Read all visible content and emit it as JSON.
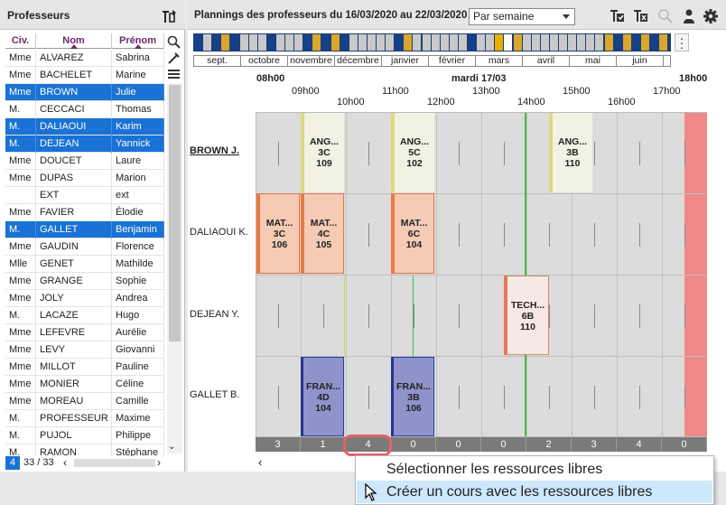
{
  "left_panel": {
    "title": "Professeurs",
    "columns": [
      "Civ.",
      "Nom",
      "Prénom"
    ],
    "rows": [
      {
        "civ": "Mme",
        "nom": "ALVAREZ",
        "prenom": "Sabrina",
        "selected": false
      },
      {
        "civ": "Mme",
        "nom": "BACHELET",
        "prenom": "Marine",
        "selected": false
      },
      {
        "civ": "Mme",
        "nom": "BROWN",
        "prenom": "Julie",
        "selected": true
      },
      {
        "civ": "M.",
        "nom": "CECCACI",
        "prenom": "Thomas",
        "selected": false
      },
      {
        "civ": "M.",
        "nom": "DALIAOUI",
        "prenom": "Karim",
        "selected": true
      },
      {
        "civ": "M.",
        "nom": "DEJEAN",
        "prenom": "Yannick",
        "selected": true
      },
      {
        "civ": "Mme",
        "nom": "DOUCET",
        "prenom": "Laure",
        "selected": false
      },
      {
        "civ": "Mme",
        "nom": "DUPAS",
        "prenom": "Marion",
        "selected": false
      },
      {
        "civ": "",
        "nom": "EXT",
        "prenom": "ext",
        "selected": false
      },
      {
        "civ": "Mme",
        "nom": "FAVIER",
        "prenom": "Élodie",
        "selected": false
      },
      {
        "civ": "M.",
        "nom": "GALLET",
        "prenom": "Benjamin",
        "selected": true
      },
      {
        "civ": "Mme",
        "nom": "GAUDIN",
        "prenom": "Florence",
        "selected": false
      },
      {
        "civ": "Mlle",
        "nom": "GENET",
        "prenom": "Mathilde",
        "selected": false
      },
      {
        "civ": "Mme",
        "nom": "GRANGE",
        "prenom": "Sophie",
        "selected": false
      },
      {
        "civ": "Mme",
        "nom": "JOLY",
        "prenom": "Andrea",
        "selected": false
      },
      {
        "civ": "M.",
        "nom": "LACAZE",
        "prenom": "Hugo",
        "selected": false
      },
      {
        "civ": "Mme",
        "nom": "LEFEVRE",
        "prenom": "Aurélie",
        "selected": false
      },
      {
        "civ": "Mme",
        "nom": "LEVY",
        "prenom": "Giovanni",
        "selected": false
      },
      {
        "civ": "Mme",
        "nom": "MILLOT",
        "prenom": "Pauline",
        "selected": false
      },
      {
        "civ": "Mme",
        "nom": "MONIER",
        "prenom": "Céline",
        "selected": false
      },
      {
        "civ": "Mme",
        "nom": "MOREAU",
        "prenom": "Camille",
        "selected": false
      },
      {
        "civ": "M.",
        "nom": "PROFESSEUR",
        "prenom": "Maxime",
        "selected": false
      },
      {
        "civ": "M.",
        "nom": "PUJOL",
        "prenom": "Philippe",
        "selected": false
      },
      {
        "civ": "M.",
        "nom": "RAMON",
        "prenom": "Stéphane",
        "selected": false
      }
    ],
    "footer": {
      "selected_count": "4",
      "total": "33 / 33"
    }
  },
  "right_panel": {
    "title": "Plannings des professeurs du 16/03/2020 au 22/03/2020",
    "view_select": "Par semaine",
    "months": [
      "sept.",
      "octobre",
      "novembre",
      "décembre",
      "janvier",
      "février",
      "mars",
      "avril",
      "mai",
      "juin"
    ],
    "day_label": "mardi 17/03",
    "start_time": "08h00",
    "end_time": "18h00",
    "hours_upper": [
      "09h00",
      "11h00",
      "13h00",
      "15h00",
      "17h00"
    ],
    "hours_lower": [
      "10h00",
      "12h00",
      "14h00",
      "16h00"
    ],
    "teachers": [
      "BROWN J.",
      "DALIAOUI K.",
      "DEJEAN Y.",
      "GALLET B."
    ],
    "courses": [
      {
        "subject": "ANG...",
        "class": "3C",
        "room": "109"
      },
      {
        "subject": "ANG...",
        "class": "5C",
        "room": "102"
      },
      {
        "subject": "ANG...",
        "class": "3B",
        "room": "110"
      },
      {
        "subject": "MAT...",
        "class": "3C",
        "room": "106"
      },
      {
        "subject": "MAT...",
        "class": "4C",
        "room": "105"
      },
      {
        "subject": "MAT...",
        "class": "6C",
        "room": "104"
      },
      {
        "subject": "TECH...",
        "class": "6B",
        "room": "110"
      },
      {
        "subject": "FRAN...",
        "class": "4D",
        "room": "104"
      },
      {
        "subject": "FRAN...",
        "class": "3B",
        "room": "106"
      }
    ],
    "free_counts": [
      "3",
      "1",
      "4",
      "0",
      "0",
      "0",
      "2",
      "3",
      "4",
      "0"
    ]
  },
  "context_menu": {
    "items": [
      "Sélectionner les ressources libres",
      "Créer un cours avec les ressources libres"
    ]
  },
  "colors": {
    "selection": "#1a72d4",
    "highlight": "#e06464",
    "menu_hover": "#cde8fb"
  }
}
